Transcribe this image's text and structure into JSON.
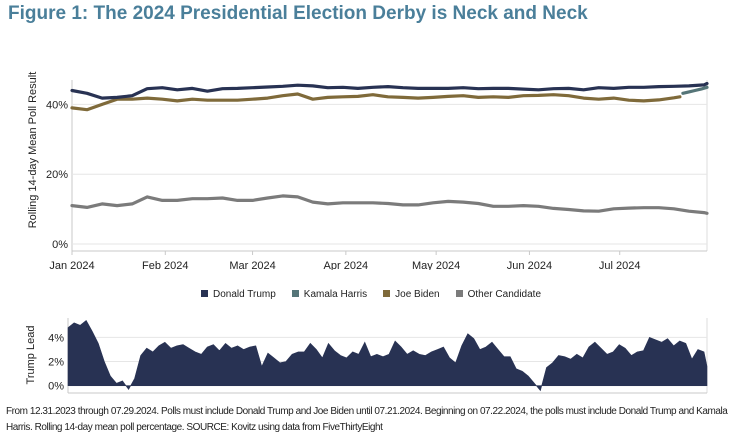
{
  "title": "Figure 1: The 2024 Presidential Election Derby is Neck and Neck",
  "footnote": "From 12.31.2023 through 07.29.2024. Polls must include Donald Trump and Joe Biden until 07.21.2024. Beginning on 07.22.2024, the polls must include Donald Trump and Kamala Harris. Rolling 14-day mean poll percentage. SOURCE: Kovitz using data from FiveThirtyEight",
  "colors": {
    "trump": "#283253",
    "harris": "#557578",
    "biden": "#7f6a3a",
    "other": "#7b7b7b",
    "title": "#4a7f9a",
    "area": "#283253"
  },
  "legend": [
    {
      "name": "Donald Trump",
      "color": "#283253"
    },
    {
      "name": "Kamala Harris",
      "color": "#557578"
    },
    {
      "name": "Joe Biden",
      "color": "#7f6a3a"
    },
    {
      "name": "Other Candidate",
      "color": "#7b7b7b"
    }
  ],
  "chart_data": [
    {
      "type": "line",
      "ylabel": "Rolling 14-day Mean Poll Result",
      "xlabel": "",
      "x_range": [
        0,
        211
      ],
      "ylim": [
        -2,
        47
      ],
      "x_ticks": [
        {
          "x": 0,
          "label": "Jan 2024"
        },
        {
          "x": 31,
          "label": "Feb 2024"
        },
        {
          "x": 60,
          "label": "Mar 2024"
        },
        {
          "x": 91,
          "label": "Apr 2024"
        },
        {
          "x": 121,
          "label": "May 2024"
        },
        {
          "x": 152,
          "label": "Jun 2024"
        },
        {
          "x": 182,
          "label": "Jul 2024"
        }
      ],
      "y_ticks": [
        {
          "y": 0,
          "label": "0%"
        },
        {
          "y": 20,
          "label": "20%"
        },
        {
          "y": 40,
          "label": "40%"
        }
      ],
      "series": [
        {
          "name": "Donald Trump",
          "x": [
            0,
            5,
            10,
            15,
            20,
            25,
            30,
            35,
            40,
            45,
            50,
            55,
            60,
            65,
            70,
            75,
            80,
            85,
            90,
            95,
            100,
            105,
            110,
            115,
            120,
            125,
            130,
            135,
            140,
            145,
            150,
            155,
            160,
            165,
            170,
            175,
            180,
            185,
            190,
            195,
            200,
            205,
            210,
            211
          ],
          "values": [
            44.0,
            43.2,
            41.8,
            42.0,
            42.5,
            44.5,
            44.8,
            44.2,
            44.6,
            43.8,
            44.5,
            44.6,
            44.8,
            45.0,
            45.2,
            45.5,
            45.3,
            44.8,
            44.9,
            44.6,
            44.9,
            45.1,
            44.8,
            44.6,
            44.6,
            44.6,
            44.8,
            44.5,
            44.6,
            44.6,
            44.4,
            44.2,
            44.5,
            44.6,
            44.2,
            44.8,
            44.6,
            44.9,
            44.9,
            45.1,
            45.2,
            45.3,
            45.6,
            46.0
          ]
        },
        {
          "name": "Kamala Harris",
          "x": [
            203,
            205,
            207,
            209,
            211
          ],
          "values": [
            43.2,
            43.6,
            44.0,
            44.4,
            44.9
          ]
        },
        {
          "name": "Joe Biden",
          "x": [
            0,
            5,
            10,
            15,
            20,
            25,
            30,
            35,
            40,
            45,
            50,
            55,
            60,
            65,
            70,
            75,
            80,
            85,
            90,
            95,
            100,
            105,
            110,
            115,
            120,
            125,
            130,
            135,
            140,
            145,
            150,
            155,
            160,
            165,
            170,
            175,
            180,
            185,
            190,
            195,
            200,
            202
          ],
          "values": [
            39.0,
            38.5,
            40.0,
            41.5,
            41.5,
            41.8,
            41.5,
            41.0,
            41.5,
            41.2,
            41.2,
            41.2,
            41.5,
            41.8,
            42.5,
            43.0,
            41.5,
            42.0,
            42.2,
            42.3,
            42.8,
            42.2,
            42.0,
            41.8,
            42.0,
            42.3,
            42.5,
            42.0,
            42.2,
            42.0,
            42.5,
            42.6,
            42.8,
            42.5,
            41.8,
            41.5,
            41.8,
            41.2,
            41.0,
            41.3,
            41.9,
            42.2
          ]
        },
        {
          "name": "Other Candidate",
          "x": [
            0,
            5,
            10,
            15,
            20,
            25,
            30,
            35,
            40,
            45,
            50,
            55,
            60,
            65,
            70,
            75,
            80,
            85,
            90,
            95,
            100,
            105,
            110,
            115,
            120,
            125,
            130,
            135,
            140,
            145,
            150,
            155,
            160,
            165,
            170,
            175,
            180,
            185,
            190,
            195,
            200,
            205,
            210,
            211
          ],
          "values": [
            11.0,
            10.5,
            11.5,
            11.0,
            11.5,
            13.5,
            12.5,
            12.5,
            13.0,
            13.0,
            13.2,
            12.5,
            12.5,
            13.2,
            13.8,
            13.5,
            12.0,
            11.5,
            11.8,
            11.8,
            11.8,
            11.6,
            11.2,
            11.2,
            11.8,
            12.2,
            12.0,
            11.6,
            10.8,
            10.8,
            11.0,
            10.8,
            10.2,
            9.9,
            9.5,
            9.4,
            10.1,
            10.3,
            10.4,
            10.4,
            10.1,
            9.4,
            9.0,
            8.8
          ]
        }
      ]
    },
    {
      "type": "area",
      "ylabel": "Trump Lead",
      "x_range": [
        0,
        211
      ],
      "ylim": [
        -0.6,
        5.6
      ],
      "y_ticks": [
        {
          "y": 0,
          "label": "0%"
        },
        {
          "y": 2,
          "label": "2%"
        },
        {
          "y": 4,
          "label": "4%"
        }
      ],
      "series": [
        {
          "name": "Trump Lead",
          "x": [
            0,
            2,
            4,
            6,
            8,
            10,
            12,
            14,
            16,
            18,
            20,
            22,
            24,
            26,
            28,
            30,
            32,
            34,
            36,
            38,
            40,
            42,
            44,
            46,
            48,
            50,
            52,
            54,
            56,
            58,
            60,
            62,
            64,
            66,
            68,
            70,
            72,
            74,
            76,
            78,
            80,
            82,
            84,
            86,
            88,
            90,
            92,
            94,
            96,
            98,
            100,
            102,
            104,
            106,
            108,
            110,
            112,
            114,
            116,
            118,
            120,
            122,
            124,
            126,
            128,
            130,
            132,
            134,
            136,
            138,
            140,
            142,
            144,
            146,
            148,
            150,
            152,
            154,
            156,
            158,
            160,
            162,
            164,
            166,
            168,
            170,
            172,
            174,
            176,
            178,
            180,
            182,
            184,
            186,
            188,
            190,
            192,
            194,
            196,
            198,
            200,
            202,
            204,
            206,
            208,
            210,
            211
          ],
          "values": [
            4.8,
            5.2,
            5.0,
            5.4,
            4.5,
            3.5,
            2.0,
            0.8,
            0.2,
            0.4,
            -0.3,
            0.6,
            2.5,
            3.1,
            2.8,
            3.3,
            3.6,
            3.1,
            3.3,
            3.4,
            3.1,
            2.8,
            2.6,
            3.2,
            3.4,
            2.9,
            3.5,
            3.1,
            3.3,
            3.0,
            3.2,
            3.3,
            1.6,
            2.7,
            2.3,
            1.9,
            2.0,
            2.6,
            2.8,
            2.8,
            3.5,
            3.0,
            2.3,
            3.5,
            2.9,
            2.5,
            2.3,
            2.8,
            2.6,
            3.6,
            2.4,
            2.6,
            2.4,
            2.6,
            3.7,
            3.2,
            2.6,
            2.9,
            2.6,
            2.5,
            2.8,
            3.0,
            3.2,
            2.3,
            1.9,
            3.3,
            4.3,
            3.9,
            3.0,
            3.2,
            3.6,
            3.0,
            2.4,
            2.4,
            1.4,
            1.2,
            0.8,
            0.2,
            -0.4,
            1.5,
            1.9,
            2.5,
            2.4,
            2.2,
            2.6,
            2.3,
            3.2,
            3.6,
            3.1,
            2.6,
            2.8,
            3.4,
            3.1,
            2.5,
            2.8,
            2.9,
            4.0,
            3.8,
            3.6,
            3.9,
            3.3,
            3.7,
            3.5,
            2.2,
            3.0,
            2.8,
            1.6
          ]
        }
      ]
    }
  ]
}
